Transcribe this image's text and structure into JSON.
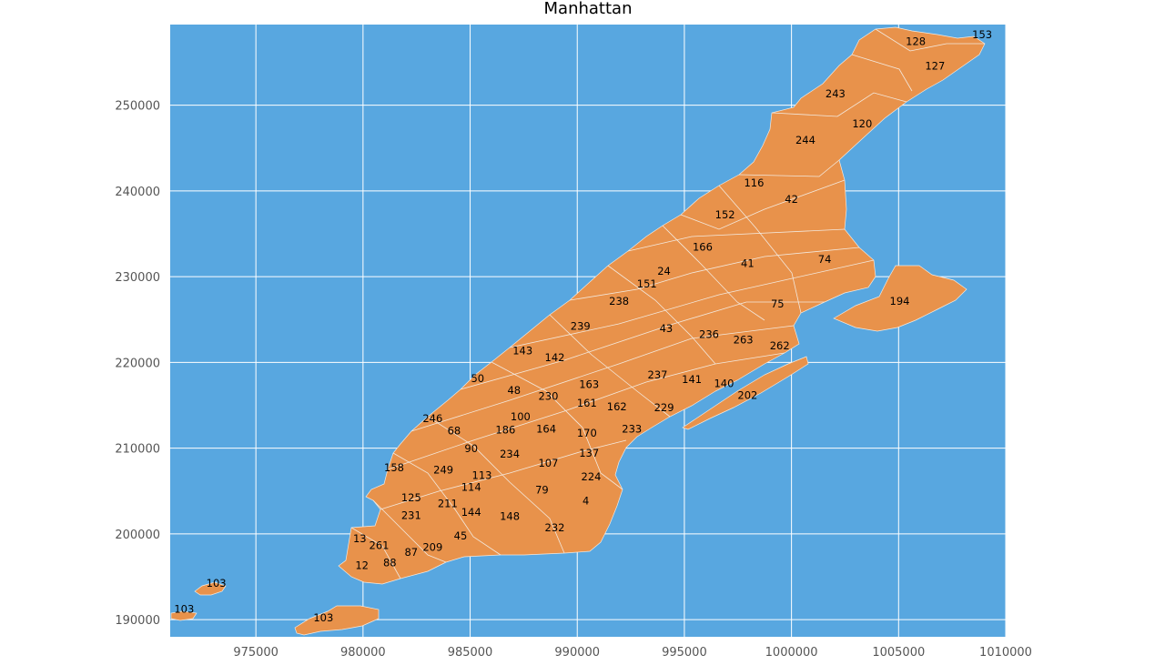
{
  "title": "Manhattan",
  "colors": {
    "water": "#58a7e0",
    "land": "#e8924b",
    "border": "#f3e9de",
    "grid": "#ffffff"
  },
  "x_ticks": [
    "975000",
    "980000",
    "985000",
    "990000",
    "995000",
    "1000000",
    "1005000",
    "1010000"
  ],
  "y_ticks": [
    "250000",
    "240000",
    "230000",
    "220000",
    "210000",
    "200000",
    "190000"
  ],
  "chart_data": {
    "type": "map",
    "title": "Manhattan",
    "xlim": [
      971000,
      1010000
    ],
    "ylim": [
      188000,
      259400
    ],
    "grid": true,
    "zones": [
      {
        "id": "153",
        "x": 1008900,
        "y": 258250
      },
      {
        "id": "128",
        "x": 1005800,
        "y": 257450
      },
      {
        "id": "127",
        "x": 1006700,
        "y": 254550
      },
      {
        "id": "243",
        "x": 1002050,
        "y": 251350
      },
      {
        "id": "120",
        "x": 1003300,
        "y": 247850
      },
      {
        "id": "244",
        "x": 1000650,
        "y": 245950
      },
      {
        "id": "116",
        "x": 998250,
        "y": 240950
      },
      {
        "id": "42",
        "x": 1000000,
        "y": 239050
      },
      {
        "id": "152",
        "x": 996900,
        "y": 237250
      },
      {
        "id": "166",
        "x": 995850,
        "y": 233450
      },
      {
        "id": "74",
        "x": 1001550,
        "y": 232050
      },
      {
        "id": "41",
        "x": 997950,
        "y": 231550
      },
      {
        "id": "24",
        "x": 994050,
        "y": 230650
      },
      {
        "id": "151",
        "x": 993250,
        "y": 229150
      },
      {
        "id": "194",
        "x": 1005050,
        "y": 227150
      },
      {
        "id": "75",
        "x": 999350,
        "y": 226850
      },
      {
        "id": "238",
        "x": 991950,
        "y": 227150
      },
      {
        "id": "239",
        "x": 990150,
        "y": 224250
      },
      {
        "id": "43",
        "x": 994150,
        "y": 223950
      },
      {
        "id": "236",
        "x": 996150,
        "y": 223250
      },
      {
        "id": "263",
        "x": 997750,
        "y": 222650
      },
      {
        "id": "262",
        "x": 999450,
        "y": 221950
      },
      {
        "id": "143",
        "x": 987450,
        "y": 221350
      },
      {
        "id": "142",
        "x": 988950,
        "y": 220550
      },
      {
        "id": "237",
        "x": 993750,
        "y": 218550
      },
      {
        "id": "141",
        "x": 995350,
        "y": 218050
      },
      {
        "id": "140",
        "x": 996850,
        "y": 217550
      },
      {
        "id": "50",
        "x": 985350,
        "y": 218150
      },
      {
        "id": "163",
        "x": 990550,
        "y": 217450
      },
      {
        "id": "202",
        "x": 997950,
        "y": 216150
      },
      {
        "id": "48",
        "x": 987050,
        "y": 216750
      },
      {
        "id": "230",
        "x": 988650,
        "y": 216050
      },
      {
        "id": "161",
        "x": 990450,
        "y": 215250
      },
      {
        "id": "162",
        "x": 991850,
        "y": 214850
      },
      {
        "id": "229",
        "x": 994050,
        "y": 214750
      },
      {
        "id": "246",
        "x": 983250,
        "y": 213450
      },
      {
        "id": "100",
        "x": 987350,
        "y": 213650
      },
      {
        "id": "68",
        "x": 984250,
        "y": 212050
      },
      {
        "id": "186",
        "x": 986650,
        "y": 212150
      },
      {
        "id": "164",
        "x": 988550,
        "y": 212250
      },
      {
        "id": "170",
        "x": 990450,
        "y": 211750
      },
      {
        "id": "233",
        "x": 992550,
        "y": 212250
      },
      {
        "id": "90",
        "x": 985050,
        "y": 209950
      },
      {
        "id": "234",
        "x": 986850,
        "y": 209350
      },
      {
        "id": "137",
        "x": 990550,
        "y": 209450
      },
      {
        "id": "107",
        "x": 988650,
        "y": 208250
      },
      {
        "id": "158",
        "x": 981450,
        "y": 207750
      },
      {
        "id": "249",
        "x": 983750,
        "y": 207450
      },
      {
        "id": "113",
        "x": 985550,
        "y": 206850
      },
      {
        "id": "224",
        "x": 990650,
        "y": 206650
      },
      {
        "id": "114",
        "x": 985050,
        "y": 205450
      },
      {
        "id": "79",
        "x": 988350,
        "y": 205150
      },
      {
        "id": "125",
        "x": 982250,
        "y": 204250
      },
      {
        "id": "211",
        "x": 983950,
        "y": 203550
      },
      {
        "id": "4",
        "x": 990400,
        "y": 203850
      },
      {
        "id": "144",
        "x": 985050,
        "y": 202550
      },
      {
        "id": "148",
        "x": 986850,
        "y": 202050
      },
      {
        "id": "231",
        "x": 982250,
        "y": 202150
      },
      {
        "id": "232",
        "x": 988950,
        "y": 200750
      },
      {
        "id": "45",
        "x": 984550,
        "y": 199750
      },
      {
        "id": "13",
        "x": 979850,
        "y": 199450
      },
      {
        "id": "261",
        "x": 980750,
        "y": 198650
      },
      {
        "id": "209",
        "x": 983250,
        "y": 198450
      },
      {
        "id": "87",
        "x": 982250,
        "y": 197850
      },
      {
        "id": "88",
        "x": 981250,
        "y": 196650
      },
      {
        "id": "12",
        "x": 979950,
        "y": 196350
      },
      {
        "id": "103",
        "x": 973150,
        "y": 194250
      },
      {
        "id": "103",
        "x": 971650,
        "y": 191250
      },
      {
        "id": "103",
        "x": 978150,
        "y": 190250
      }
    ]
  }
}
